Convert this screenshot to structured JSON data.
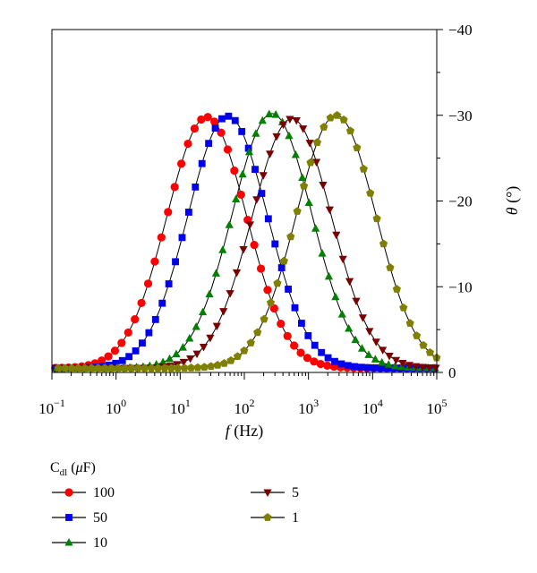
{
  "chart_data": {
    "type": "line",
    "x_scale": "log",
    "xlabel": {
      "italic": "f",
      "rest": " (Hz)"
    },
    "ylabel": {
      "italic": "θ",
      "rest": " (°)"
    },
    "xlim": [
      0.1,
      100000
    ],
    "ylim": [
      0,
      -40
    ],
    "y_axis_side": "right",
    "y_ticks": [
      0,
      -10,
      -20,
      -30,
      -40
    ],
    "y_tick_labels": [
      "0",
      "−10",
      "−20",
      "−30",
      "−40"
    ],
    "x_ticks": [
      {
        "value": 0.1,
        "base": "10",
        "exp": "−1"
      },
      {
        "value": 1,
        "base": "10",
        "exp": "0"
      },
      {
        "value": 10,
        "base": "10",
        "exp": "1"
      },
      {
        "value": 100,
        "base": "10",
        "exp": "2"
      },
      {
        "value": 1000,
        "base": "10",
        "exp": "3"
      },
      {
        "value": 10000,
        "base": "10",
        "exp": "4"
      },
      {
        "value": 100000,
        "base": "10",
        "exp": "5"
      }
    ],
    "grid": false,
    "legend": {
      "title": {
        "main": "C",
        "sub": "dl",
        "rest": " (",
        "italic": "μ",
        "rest2": "F)"
      },
      "placement": "below"
    },
    "series": [
      {
        "name": "100",
        "color": "#ff0000",
        "marker": "circle",
        "peak_f": 26,
        "peak_theta": -29.8
      },
      {
        "name": "50",
        "color": "#0000ee",
        "marker": "square",
        "peak_f": 55,
        "peak_theta": -29.9
      },
      {
        "name": "10",
        "color": "#008000",
        "marker": "triangle-up",
        "peak_f": 270,
        "peak_theta": -30.2
      },
      {
        "name": "5",
        "color": "#7a0000",
        "marker": "triangle-down",
        "peak_f": 550,
        "peak_theta": -29.6
      },
      {
        "name": "1",
        "color": "#808000",
        "marker": "pentagon",
        "peak_f": 2700,
        "peak_theta": -30.0
      }
    ],
    "baseline_theta": -0.5,
    "peak_width_sigma": 0.62
  }
}
